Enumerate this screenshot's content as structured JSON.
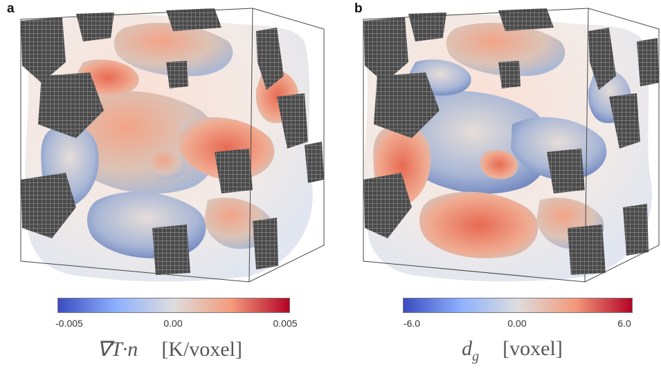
{
  "panel_a": {
    "label": "a",
    "colorbar": {
      "min_label": "-0.005",
      "mid_label": "0.00",
      "max_label": "0.005",
      "low_color": "#3b4cc0",
      "mid_color": "#dddddd",
      "high_color": "#b40426"
    },
    "quantity": {
      "symbol": "∇T·n",
      "unit": "[K/voxel]"
    }
  },
  "panel_b": {
    "label": "b",
    "colorbar": {
      "min_label": "-6.0",
      "mid_label": "0.00",
      "max_label": "6.0",
      "low_color": "#3b4cc0",
      "mid_color": "#dddddd",
      "high_color": "#b40426"
    },
    "quantity": {
      "symbol": "d",
      "subscript": "g",
      "unit": "[voxel]"
    }
  },
  "rendering": {
    "box_edge_color": "#444444",
    "solid_mesh_color": "#555555",
    "surface_colormap": "coolwarm"
  }
}
